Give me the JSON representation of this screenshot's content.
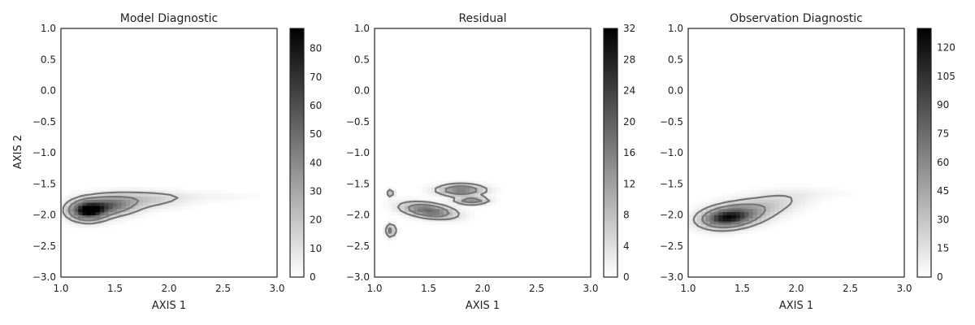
{
  "figure": {
    "shared_ylabel": "AXIS 2"
  },
  "chart_data": [
    {
      "type": "heatmap",
      "title": "Model Diagnostic",
      "xlabel": "AXIS 1",
      "ylabel": "AXIS 2",
      "xlim": [
        1.0,
        3.0
      ],
      "ylim": [
        -3.0,
        1.0
      ],
      "xticks": [
        "1.0",
        "1.5",
        "2.0",
        "2.5",
        "3.0"
      ],
      "yticks": [
        "1.0",
        "0.5",
        "0.0",
        "−0.5",
        "−1.0",
        "−1.5",
        "−2.0",
        "−2.5",
        "−3.0"
      ],
      "colorbar": {
        "range": [
          0,
          87
        ],
        "ticks": [
          0,
          10,
          20,
          30,
          40,
          50,
          60,
          70,
          80
        ]
      },
      "contours": true,
      "colormap": [
        "#ffffff",
        "#000000"
      ],
      "density_blobs": [
        {
          "x": 1.25,
          "y": -1.93,
          "sx": 0.11,
          "sy": 0.1,
          "peak": 87,
          "angle": 0
        },
        {
          "x": 1.45,
          "y": -1.85,
          "sx": 0.16,
          "sy": 0.1,
          "peak": 45,
          "angle": 0
        },
        {
          "x": 1.75,
          "y": -1.75,
          "sx": 0.25,
          "sy": 0.09,
          "peak": 18,
          "angle": 0
        },
        {
          "x": 2.25,
          "y": -1.7,
          "sx": 0.35,
          "sy": 0.05,
          "peak": 4,
          "angle": 0
        }
      ]
    },
    {
      "type": "heatmap",
      "title": "Residual",
      "xlabel": "AXIS 1",
      "ylabel": "",
      "xlim": [
        1.0,
        3.0
      ],
      "ylim": [
        -3.0,
        1.0
      ],
      "xticks": [
        "1.0",
        "1.5",
        "2.0",
        "2.5",
        "3.0"
      ],
      "yticks": [
        "1.0",
        "0.5",
        "0.0",
        "−0.5",
        "−1.0",
        "−1.5",
        "−2.0",
        "−2.5",
        "−3.0"
      ],
      "colorbar": {
        "range": [
          0,
          32
        ],
        "ticks": [
          0,
          4,
          8,
          12,
          16,
          20,
          24,
          28,
          32
        ]
      },
      "contours": true,
      "colormap": [
        "#ffffff",
        "#000000"
      ],
      "density_blobs": [
        {
          "x": 1.5,
          "y": -1.93,
          "sx": 0.16,
          "sy": 0.07,
          "peak": 20,
          "angle": -15
        },
        {
          "x": 1.8,
          "y": -1.6,
          "sx": 0.14,
          "sy": 0.06,
          "peak": 17,
          "angle": 0
        },
        {
          "x": 1.9,
          "y": -1.77,
          "sx": 0.1,
          "sy": 0.04,
          "peak": 14,
          "angle": 0
        },
        {
          "x": 1.15,
          "y": -2.25,
          "sx": 0.03,
          "sy": 0.07,
          "peak": 12,
          "angle": 0
        },
        {
          "x": 1.15,
          "y": -1.65,
          "sx": 0.02,
          "sy": 0.04,
          "peak": 10,
          "angle": 0
        }
      ]
    },
    {
      "type": "heatmap",
      "title": "Observation Diagnostic",
      "xlabel": "AXIS 1",
      "ylabel": "",
      "xlim": [
        1.0,
        3.0
      ],
      "ylim": [
        -3.0,
        1.0
      ],
      "xticks": [
        "1.0",
        "1.5",
        "2.0",
        "2.5",
        "3.0"
      ],
      "yticks": [
        "1.0",
        "0.5",
        "0.0",
        "−0.5",
        "−1.0",
        "−1.5",
        "−2.0",
        "−2.5",
        "−3.0"
      ],
      "colorbar": {
        "range": [
          0,
          130
        ],
        "ticks": [
          0,
          15,
          30,
          45,
          60,
          75,
          90,
          105,
          120
        ]
      },
      "contours": true,
      "colormap": [
        "#ffffff",
        "#000000"
      ],
      "density_blobs": [
        {
          "x": 1.35,
          "y": -2.05,
          "sx": 0.15,
          "sy": 0.1,
          "peak": 95,
          "angle": 12
        },
        {
          "x": 1.5,
          "y": -1.97,
          "sx": 0.2,
          "sy": 0.12,
          "peak": 45,
          "angle": 12
        },
        {
          "x": 1.8,
          "y": -1.8,
          "sx": 0.22,
          "sy": 0.11,
          "peak": 18,
          "angle": 15
        },
        {
          "x": 2.1,
          "y": -1.65,
          "sx": 0.3,
          "sy": 0.06,
          "peak": 4,
          "angle": 0
        }
      ]
    }
  ]
}
